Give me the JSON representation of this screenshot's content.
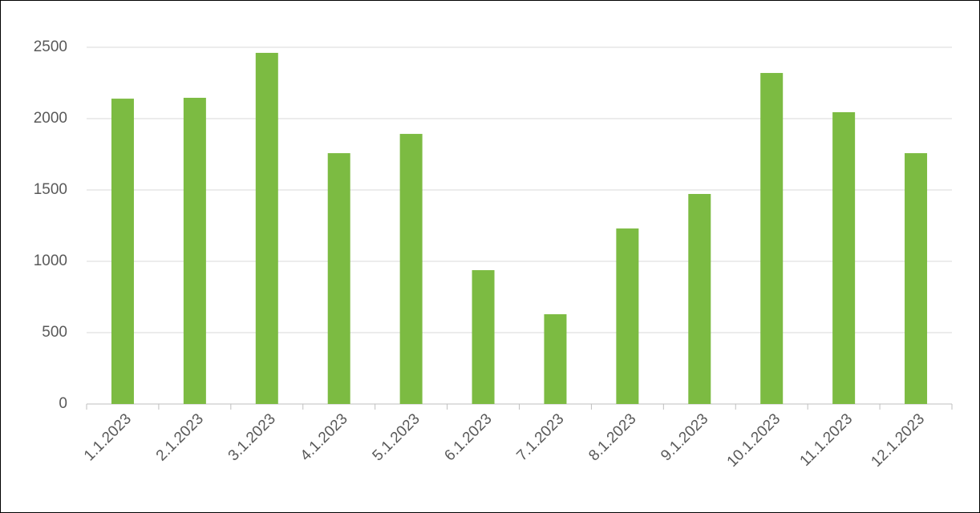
{
  "chart_data": {
    "type": "bar",
    "categories": [
      "1.1.2023",
      "2.1.2023",
      "3.1.2023",
      "4.1.2023",
      "5.1.2023",
      "6.1.2023",
      "7.1.2023",
      "8.1.2023",
      "9.1.2023",
      "10.1.2023",
      "11.1.2023",
      "12.1.2023"
    ],
    "values": [
      2140,
      2146,
      2461,
      1758,
      1893,
      938,
      629,
      1230,
      1472,
      2320,
      2045,
      1758
    ],
    "color": "#7cbb42",
    "ylim": [
      0,
      2500
    ],
    "yticks": [
      0,
      500,
      1000,
      1500,
      2000,
      2500
    ],
    "grid": true
  }
}
